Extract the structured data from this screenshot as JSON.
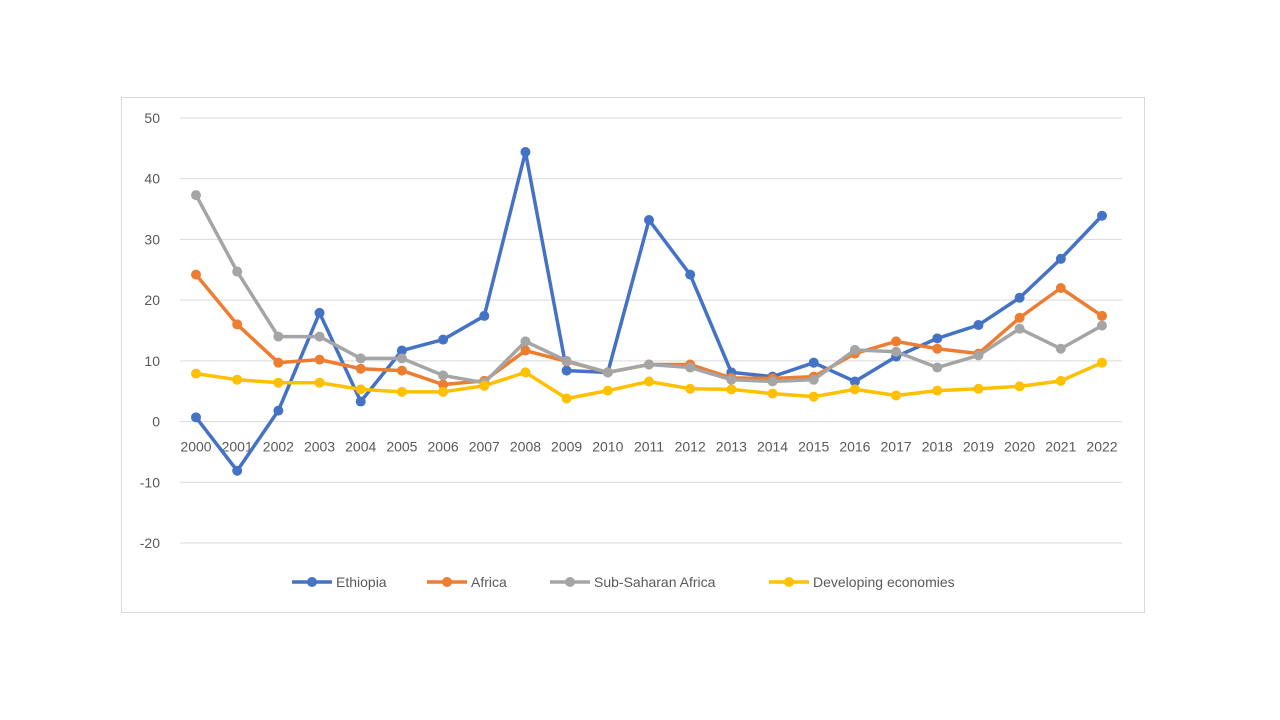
{
  "chart_data": {
    "type": "line",
    "title": "",
    "xlabel": "",
    "ylabel": "",
    "ylim": [
      -20,
      50
    ],
    "yticks": [
      -20,
      -10,
      0,
      10,
      20,
      30,
      40,
      50
    ],
    "grid": true,
    "legend_position": "bottom",
    "categories": [
      "2000",
      "2001",
      "2002",
      "2003",
      "2004",
      "2005",
      "2006",
      "2007",
      "2008",
      "2009",
      "2010",
      "2011",
      "2012",
      "2013",
      "2014",
      "2015",
      "2016",
      "2017",
      "2018",
      "2019",
      "2020",
      "2021",
      "2022"
    ],
    "series": [
      {
        "name": "Ethiopia",
        "color": "#4472c4",
        "values": [
          0.7,
          -8.1,
          1.8,
          17.9,
          3.3,
          11.7,
          13.5,
          17.4,
          44.4,
          8.4,
          8.1,
          33.2,
          24.2,
          8.1,
          7.4,
          9.7,
          6.6,
          10.7,
          13.7,
          15.9,
          20.4,
          26.8,
          33.9
        ]
      },
      {
        "name": "Africa",
        "color": "#ed7d31",
        "values": [
          24.2,
          16.0,
          9.7,
          10.2,
          8.7,
          8.4,
          6.1,
          6.7,
          11.7,
          9.9,
          8.1,
          9.4,
          9.4,
          7.2,
          7.1,
          7.4,
          11.2,
          13.2,
          12.0,
          11.2,
          17.1,
          22.0,
          17.4
        ]
      },
      {
        "name": "Sub-Saharan Africa",
        "color": "#a5a5a5",
        "values": [
          37.3,
          24.7,
          14.0,
          14.0,
          10.4,
          10.4,
          7.6,
          6.4,
          13.2,
          10.0,
          8.1,
          9.4,
          8.9,
          6.9,
          6.6,
          6.9,
          11.8,
          11.5,
          8.9,
          10.9,
          15.3,
          12.0,
          15.8
        ]
      },
      {
        "name": "Developing economies",
        "color": "#ffc000",
        "values": [
          7.9,
          6.9,
          6.4,
          6.4,
          5.3,
          4.9,
          4.9,
          5.9,
          8.1,
          3.8,
          5.1,
          6.6,
          5.4,
          5.3,
          4.6,
          4.1,
          5.3,
          4.3,
          5.1,
          5.4,
          5.8,
          6.7,
          9.7
        ]
      }
    ]
  }
}
